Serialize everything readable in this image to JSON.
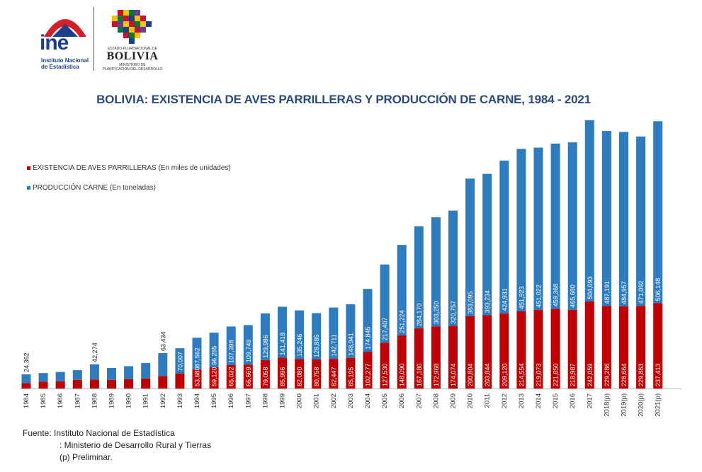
{
  "logos": {
    "ine_text": "ine",
    "ine_subtitle_1": "Instituto Nacional",
    "ine_subtitle_2": "de Estadística",
    "estado_text": "ESTADO PLURINACIONAL DE",
    "bolivia_text": "BOLIVIA",
    "ministerio_1": "MINISTERIO DE",
    "ministerio_2": "PLANIFICACIÓN DEL DESARROLLO"
  },
  "colors": {
    "red": "#c00000",
    "blue": "#2e7cc0",
    "title": "#2a4a7f"
  },
  "chart_data": {
    "type": "bar",
    "stacked": true,
    "title": "BOLIVIA: EXISTENCIA DE AVES PARRILLERAS Y PRODUCCIÓN DE CARNE, 1984 - 2021",
    "categories": [
      "1984",
      "1985",
      "1986",
      "1987",
      "1988",
      "1989",
      "1990",
      "1991",
      "1992",
      "1993",
      "1994",
      "1995",
      "1996",
      "1997",
      "1998",
      "1999",
      "2000",
      "2001",
      "2002",
      "2003",
      "2004",
      "2005",
      "2006",
      "2007",
      "2008",
      "2009",
      "2010",
      "2011",
      "2012",
      "2013",
      "2014",
      "2015",
      "2016",
      "2017",
      "2018(p)",
      "2019(p)",
      "2020(p)",
      "2021(p)"
    ],
    "series": [
      {
        "name": "EXISTENCIA DE AVES PARRILLERAS (En miles de unidades)",
        "values": [
          15000,
          19000,
          20000,
          24000,
          25000,
          24000,
          26000,
          28000,
          35000,
          42000,
          53680,
          59120,
          65032,
          66669,
          79058,
          85996,
          82080,
          80758,
          82447,
          85195,
          102277,
          127530,
          148090,
          167180,
          172968,
          174074,
          200804,
          203844,
          209120,
          214554,
          219073,
          221850,
          218987,
          242059,
          229286,
          228664,
          229863,
          237413
        ],
        "labels": [
          "",
          "",
          "",
          "",
          "",
          "",
          "",
          "",
          "",
          "",
          "53,680",
          "59,120",
          "65,032",
          "66,669",
          "79,058",
          "85,996",
          "82,080",
          "80,758",
          "82,447",
          "85,195",
          "102,277",
          "127,530",
          "148,090",
          "167,180",
          "172,968",
          "174,074",
          "200,804",
          "203,844",
          "209,120",
          "214,554",
          "219,073",
          "221,850",
          "218,987",
          "242,059",
          "229,286",
          "228,664",
          "229,863",
          "237,413"
        ]
      },
      {
        "name": "PRODUCCIÓN CARNE (En toneladas)",
        "values": [
          24362,
          24000,
          26000,
          27000,
          42274,
          33000,
          36000,
          43000,
          63434,
          70007,
          87562,
          96285,
          107398,
          109749,
          129986,
          141418,
          135246,
          128885,
          142711,
          148941,
          174845,
          217407,
          251224,
          284170,
          303250,
          320757,
          383095,
          393234,
          424931,
          451923,
          451022,
          459368,
          465680,
          504093,
          487191,
          484957,
          471092,
          506148
        ],
        "labels": [
          "24,362",
          "",
          "",
          "",
          "42,274",
          "",
          "",
          "",
          "63,434",
          "70,007",
          "87,562",
          "96,285",
          "107,398",
          "109,749",
          "129,986",
          "141,418",
          "135,246",
          "128,885",
          "142,711",
          "148,941",
          "174,845",
          "217,407",
          "251,224",
          "284,170",
          "303,250",
          "320,757",
          "383,095",
          "393,234",
          "424,931",
          "451,923",
          "451,022",
          "459,368",
          "465,680",
          "504,093",
          "487,191",
          "484,957",
          "471,092",
          "506,148"
        ]
      }
    ],
    "legend_position": "top-left",
    "grid": false
  },
  "footer": {
    "line1": "Fuente: Instituto Nacional de Estadística",
    "line2": ":  Ministerio de Desarrollo Rural y Tierras",
    "line3": "(p) Preliminar."
  }
}
